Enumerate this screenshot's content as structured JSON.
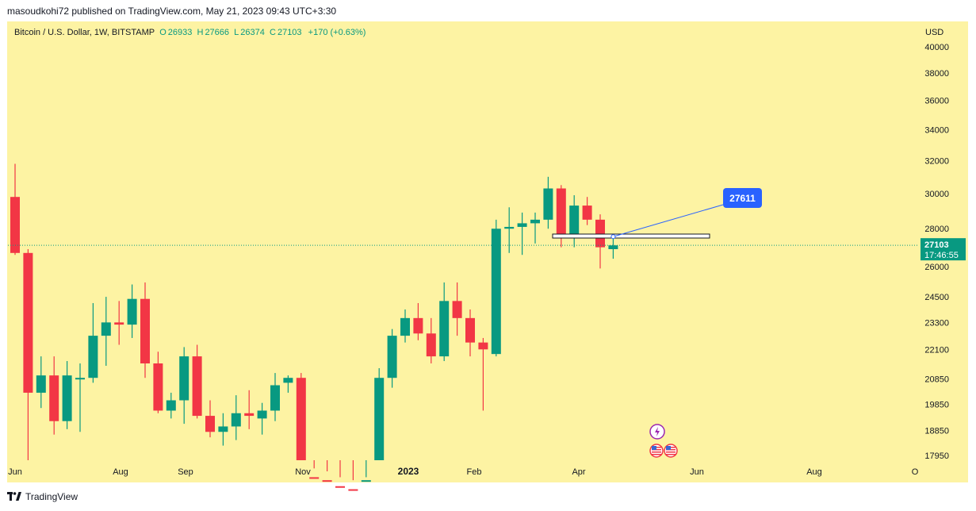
{
  "header": {
    "publisher_line": "masoudkohi72 published on TradingView.com, May 21, 2023 09:43 UTC+3:30"
  },
  "symbol": {
    "title": "Bitcoin / U.S. Dollar, 1W, BITSTAMP",
    "open_label": "O",
    "open": "26933",
    "high_label": "H",
    "high": "27666",
    "low_label": "L",
    "low": "26374",
    "close_label": "C",
    "close": "27103",
    "change": "+170 (+0.63%)",
    "currency": "USD"
  },
  "footer": {
    "brand": "TradingView"
  },
  "colors": {
    "background": "#fdf3a3",
    "up": "#089981",
    "down": "#f23645",
    "price_label": "#089981",
    "annotation": "#2962ff"
  },
  "icons": [
    "lightning-event-icon",
    "us-flag-event-icon"
  ],
  "chart_data": {
    "type": "candlestick",
    "title": "Bitcoin / U.S. Dollar, 1W, BITSTAMP",
    "y_axis_labels": [
      "40000",
      "38000",
      "36000",
      "34000",
      "32000",
      "30000",
      "28000",
      "26000",
      "24500",
      "23300",
      "22100",
      "20850",
      "19850",
      "18850",
      "17950"
    ],
    "x_axis_labels": [
      "Jun",
      "Aug",
      "Sep",
      "Nov",
      "2023",
      "Feb",
      "Apr",
      "Jun",
      "Aug",
      "O"
    ],
    "y_scale": "log",
    "current_price": "27103",
    "countdown": "17:46:55",
    "annotation_price": "27611",
    "candles": [
      {
        "o": 29800,
        "h": 31800,
        "l": 26600,
        "c": 26700
      },
      {
        "o": 26700,
        "h": 26900,
        "l": 17600,
        "c": 20300
      },
      {
        "o": 20300,
        "h": 21800,
        "l": 19700,
        "c": 21000
      },
      {
        "o": 21000,
        "h": 21800,
        "l": 18700,
        "c": 19200
      },
      {
        "o": 19200,
        "h": 21600,
        "l": 18900,
        "c": 21000
      },
      {
        "o": 20900,
        "h": 21500,
        "l": 18800,
        "c": 20900
      },
      {
        "o": 20900,
        "h": 24200,
        "l": 20700,
        "c": 22700
      },
      {
        "o": 22700,
        "h": 24500,
        "l": 21400,
        "c": 23300
      },
      {
        "o": 23300,
        "h": 24300,
        "l": 22300,
        "c": 23200
      },
      {
        "o": 23200,
        "h": 25100,
        "l": 22600,
        "c": 24400
      },
      {
        "o": 24400,
        "h": 25200,
        "l": 20900,
        "c": 21500
      },
      {
        "o": 21500,
        "h": 22000,
        "l": 19500,
        "c": 19600
      },
      {
        "o": 19600,
        "h": 20300,
        "l": 19300,
        "c": 20000
      },
      {
        "o": 20000,
        "h": 22200,
        "l": 19100,
        "c": 21800
      },
      {
        "o": 21800,
        "h": 22300,
        "l": 19300,
        "c": 19400
      },
      {
        "o": 19400,
        "h": 20000,
        "l": 18600,
        "c": 18800
      },
      {
        "o": 18800,
        "h": 19500,
        "l": 18300,
        "c": 19000
      },
      {
        "o": 19000,
        "h": 20200,
        "l": 18500,
        "c": 19500
      },
      {
        "o": 19500,
        "h": 20400,
        "l": 18900,
        "c": 19400
      },
      {
        "o": 19300,
        "h": 19900,
        "l": 18700,
        "c": 19600
      },
      {
        "o": 19600,
        "h": 21100,
        "l": 19200,
        "c": 20600
      },
      {
        "o": 20700,
        "h": 21000,
        "l": 20300,
        "c": 20900
      },
      {
        "o": 20900,
        "h": 21100,
        "l": 15500,
        "c": 16300
      },
      {
        "o": 17200,
        "h": 17500,
        "l": 16800,
        "c": 17100
      },
      {
        "o": 17100,
        "h": 17400,
        "l": 16600,
        "c": 16900
      },
      {
        "o": 16900,
        "h": 17200,
        "l": 16500,
        "c": 16800
      },
      {
        "o": 16800,
        "h": 17100,
        "l": 16300,
        "c": 16700
      },
      {
        "o": 16700,
        "h": 17200,
        "l": 16400,
        "c": 17100
      },
      {
        "o": 17200,
        "h": 21300,
        "l": 17000,
        "c": 20900
      },
      {
        "o": 20900,
        "h": 23000,
        "l": 20500,
        "c": 22700
      },
      {
        "o": 22700,
        "h": 23900,
        "l": 22400,
        "c": 23500
      },
      {
        "o": 23500,
        "h": 24200,
        "l": 22500,
        "c": 22800
      },
      {
        "o": 22800,
        "h": 23500,
        "l": 21500,
        "c": 21800
      },
      {
        "o": 21800,
        "h": 25200,
        "l": 21600,
        "c": 24300
      },
      {
        "o": 24300,
        "h": 25200,
        "l": 22700,
        "c": 23500
      },
      {
        "o": 23500,
        "h": 23900,
        "l": 21800,
        "c": 22400
      },
      {
        "o": 22400,
        "h": 22600,
        "l": 19600,
        "c": 22100
      },
      {
        "o": 21900,
        "h": 28500,
        "l": 21800,
        "c": 28000
      },
      {
        "o": 28000,
        "h": 29200,
        "l": 26700,
        "c": 28100
      },
      {
        "o": 28100,
        "h": 28900,
        "l": 26600,
        "c": 28300
      },
      {
        "o": 28300,
        "h": 28900,
        "l": 27200,
        "c": 28500
      },
      {
        "o": 28500,
        "h": 31000,
        "l": 28000,
        "c": 30300
      },
      {
        "o": 30300,
        "h": 30500,
        "l": 27000,
        "c": 27600
      },
      {
        "o": 27600,
        "h": 29900,
        "l": 27000,
        "c": 29300
      },
      {
        "o": 29300,
        "h": 29800,
        "l": 28200,
        "c": 28500
      },
      {
        "o": 28500,
        "h": 28800,
        "l": 25900,
        "c": 27000
      },
      {
        "o": 26900,
        "h": 27700,
        "l": 26400,
        "c": 27100
      }
    ]
  }
}
